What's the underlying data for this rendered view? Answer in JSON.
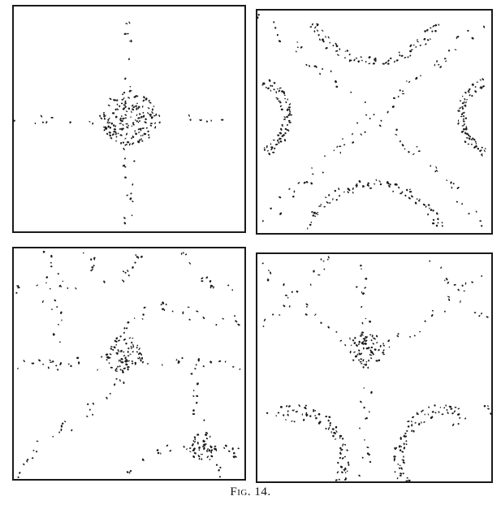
{
  "figure": {
    "caption": "Fig. 14.",
    "ink_color": "#1a1a1a",
    "paper_color": "#ffffff",
    "panels": [
      {
        "name": "panel-top-left",
        "pattern": "plus-cross"
      },
      {
        "name": "panel-top-right",
        "pattern": "diagonal-x-with-arcs"
      },
      {
        "name": "panel-bottom-left",
        "pattern": "wavy-network"
      },
      {
        "name": "panel-bottom-right",
        "pattern": "trident-with-arcs"
      }
    ]
  }
}
